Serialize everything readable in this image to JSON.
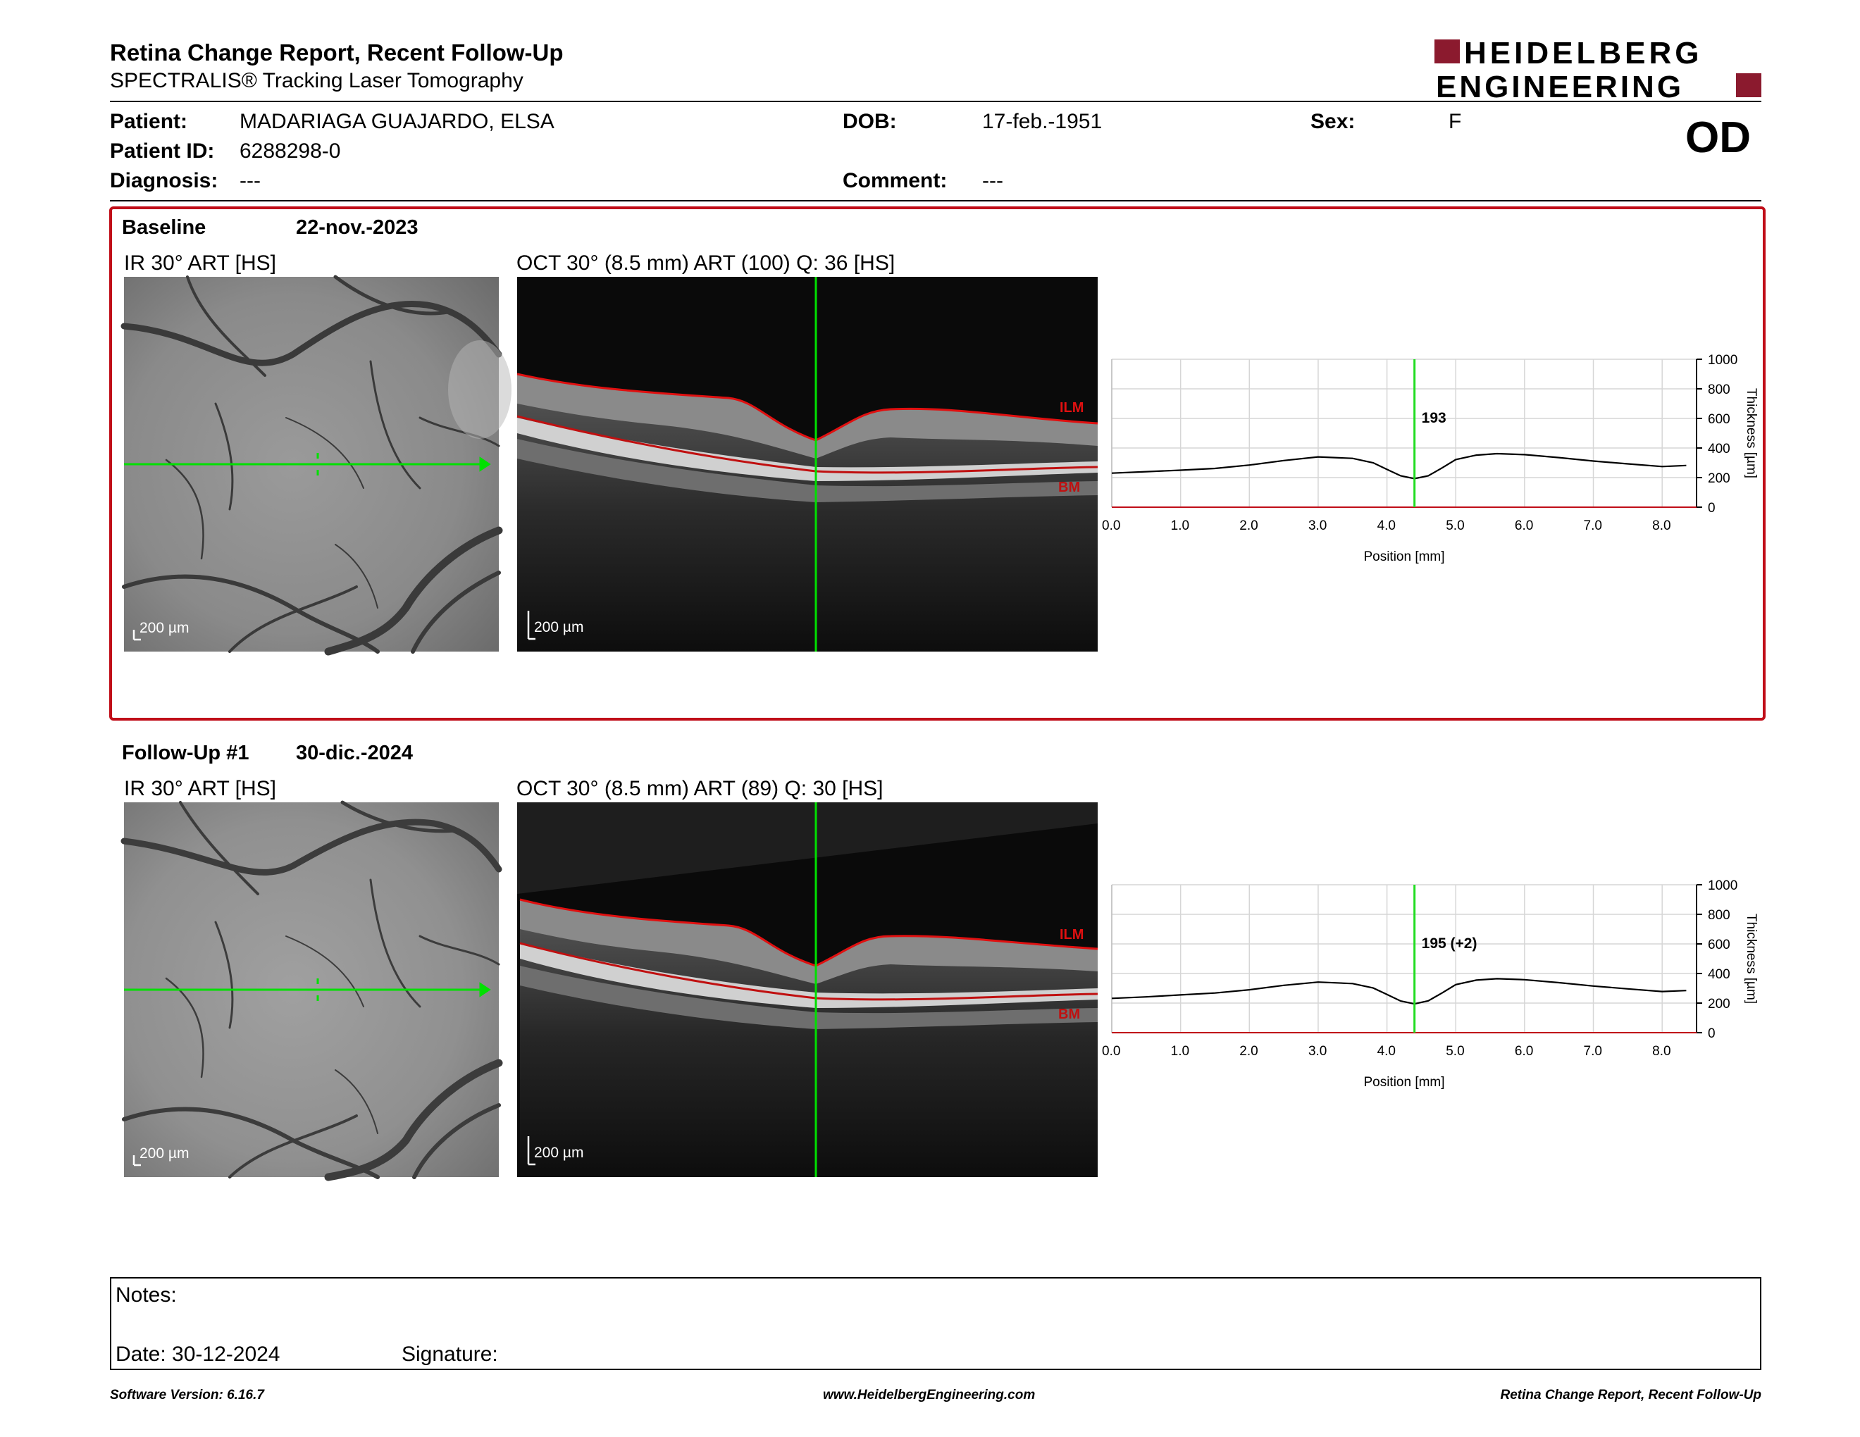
{
  "header": {
    "title": "Retina Change Report, Recent Follow-Up",
    "subtitle": "SPECTRALIS® Tracking Laser Tomography",
    "logo_line1": "HEIDELBERG",
    "logo_line2": "ENGINEERING",
    "brand_color": "#8b1a2e"
  },
  "patient": {
    "patient_label": "Patient:",
    "patient_value": "MADARIAGA GUAJARDO, ELSA",
    "id_label": "Patient ID:",
    "id_value": "6288298-0",
    "diagnosis_label": "Diagnosis:",
    "diagnosis_value": "---",
    "dob_label": "DOB:",
    "dob_value": "17-feb.-1951",
    "comment_label": "Comment:",
    "comment_value": "---",
    "sex_label": "Sex:",
    "sex_value": "F",
    "eye": "OD"
  },
  "baseline": {
    "label": "Baseline",
    "date": "22-nov.-2023",
    "ir_caption": "IR 30° ART [HS]",
    "oct_caption": "OCT 30° (8.5 mm) ART (100) Q: 36 [HS]",
    "scale": "200 µm",
    "ilm": "ILM",
    "bm": "BM",
    "cursor_value": "193"
  },
  "followup": {
    "label": "Follow-Up #1",
    "date": "30-dic.-2024",
    "ir_caption": "IR 30° ART [HS]",
    "oct_caption": "OCT 30° (8.5 mm) ART (89) Q: 30 [HS]",
    "scale": "200 µm",
    "ilm": "ILM",
    "bm": "BM",
    "cursor_value": "195 (+2)"
  },
  "chart_data": [
    {
      "type": "line",
      "xlabel": "Position [mm]",
      "ylabel": "Thickness [µm]",
      "xlim": [
        0,
        8.5
      ],
      "ylim": [
        0,
        1000
      ],
      "x_ticks": [
        "0.0",
        "1.0",
        "2.0",
        "3.0",
        "4.0",
        "5.0",
        "6.0",
        "7.0",
        "8.0"
      ],
      "y_ticks": [
        "0",
        "200",
        "400",
        "600",
        "800",
        "1000"
      ],
      "cursor_x": 4.4,
      "cursor_label": "193",
      "grid": true,
      "x": [
        0.0,
        0.5,
        1.0,
        1.5,
        2.0,
        2.5,
        3.0,
        3.5,
        3.8,
        4.0,
        4.2,
        4.4,
        4.6,
        4.8,
        5.0,
        5.3,
        5.6,
        6.0,
        6.5,
        7.0,
        7.5,
        8.0,
        8.35
      ],
      "values": [
        230,
        240,
        250,
        262,
        285,
        315,
        340,
        330,
        300,
        255,
        212,
        193,
        212,
        265,
        322,
        352,
        362,
        355,
        335,
        312,
        293,
        275,
        282
      ]
    },
    {
      "type": "line",
      "xlabel": "Position [mm]",
      "ylabel": "Thickness [µm]",
      "xlim": [
        0,
        8.5
      ],
      "ylim": [
        0,
        1000
      ],
      "x_ticks": [
        "0.0",
        "1.0",
        "2.0",
        "3.0",
        "4.0",
        "5.0",
        "6.0",
        "7.0",
        "8.0"
      ],
      "y_ticks": [
        "0",
        "200",
        "400",
        "600",
        "800",
        "1000"
      ],
      "cursor_x": 4.4,
      "cursor_label": "195 (+2)",
      "grid": true,
      "x": [
        0.0,
        0.5,
        1.0,
        1.5,
        2.0,
        2.5,
        3.0,
        3.5,
        3.8,
        4.0,
        4.2,
        4.4,
        4.6,
        4.8,
        5.0,
        5.3,
        5.6,
        6.0,
        6.5,
        7.0,
        7.5,
        8.0,
        8.35
      ],
      "values": [
        232,
        242,
        255,
        268,
        290,
        320,
        342,
        332,
        302,
        258,
        214,
        195,
        215,
        268,
        325,
        355,
        365,
        358,
        338,
        315,
        296,
        278,
        285
      ]
    }
  ],
  "notes": {
    "label": "Notes:",
    "date": "Date: 30-12-2024",
    "signature": "Signature:"
  },
  "footer": {
    "software": "Software Version: 6.16.7",
    "website": "www.HeidelbergEngineering.com",
    "report": "Retina Change Report, Recent Follow-Up"
  }
}
